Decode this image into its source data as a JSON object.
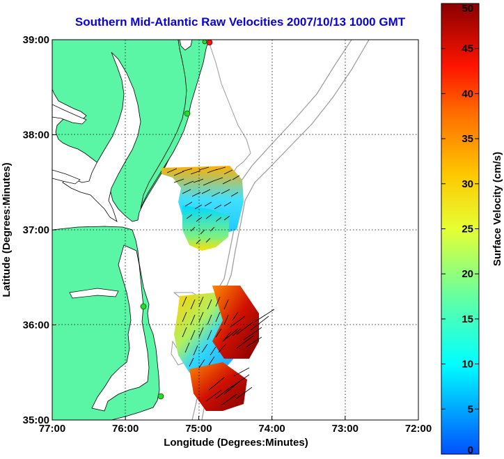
{
  "chart_data": {
    "type": "map",
    "title": "Southern Mid-Atlantic Raw Velocities 2007/10/13 1000 GMT",
    "xlabel": "Longitude (Degrees:Minutes)",
    "ylabel": "Latitude (Degrees:Minutes)",
    "x_ticks": [
      "77:00",
      "76:00",
      "75:00",
      "74:00",
      "73:00",
      "72:00"
    ],
    "y_ticks": [
      "39:00",
      "38:00",
      "37:00",
      "36:00",
      "35:00"
    ],
    "xlim": [
      -77,
      -72
    ],
    "ylim": [
      35,
      39
    ],
    "grid": true,
    "colorbar": {
      "label": "Surface Velocity (cm/s)",
      "min": 0,
      "max": 50,
      "ticks": [
        "0",
        "5",
        "10",
        "15",
        "20",
        "25",
        "30",
        "35",
        "40",
        "45",
        "50"
      ]
    },
    "colors": {
      "land": "#5af5a5",
      "water": "#ffffff",
      "bathymetry": "#999999",
      "title": "#0a00d8",
      "station_green": "#22dd22",
      "station_red": "#ff1111"
    },
    "stations": [
      {
        "lon": -74.88,
        "lat": 38.94,
        "color": "red"
      },
      {
        "lon": -74.95,
        "lat": 38.95,
        "color": "green"
      },
      {
        "lon": -75.1,
        "lat": 38.22,
        "color": "green"
      },
      {
        "lon": -75.55,
        "lat": 36.18,
        "color": "green"
      },
      {
        "lon": -75.45,
        "lat": 35.25,
        "color": "green"
      }
    ]
  }
}
